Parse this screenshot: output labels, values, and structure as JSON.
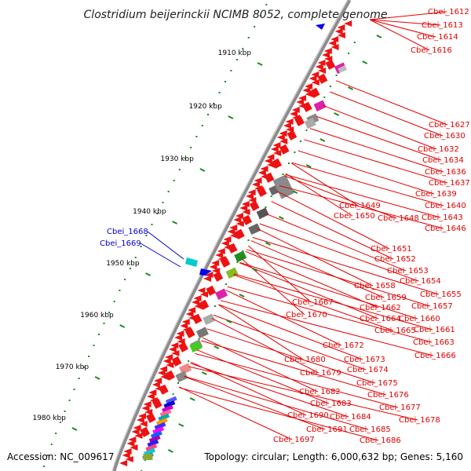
{
  "title": "Clostridium beijerinckii NCIMB 8052, complete genome",
  "accession": "Accession: NC_009617",
  "topology": "Topology: circular; Length: 6,000,632 bp; Genes: 5,160",
  "colors": {
    "gene_label": "#e00000",
    "highlight_label": "#0000cc",
    "backbone": "#8c8c8c",
    "gene_arrow": "#ee1111",
    "tick": "#1a8a1a"
  },
  "kbp_ticks": [
    "1910 kbp",
    "1920 kbp",
    "1930 kbp",
    "1940 kbp",
    "1950 kbp",
    "1960 kbp",
    "1970 kbp",
    "1980 kbp"
  ],
  "highlighted_genes": [
    "Cbei_1668",
    "Cbei_1669"
  ],
  "gene_labels": [
    "Cbei_1612",
    "Cbei_1613",
    "Cbei_1614",
    "Cbei_1616",
    "Cbei_1627",
    "Cbei_1630",
    "Cbei_1632",
    "Cbei_1634",
    "Cbei_1636",
    "Cbei_1637",
    "Cbei_1639",
    "Cbei_1640",
    "Cbei_1643",
    "Cbei_1646",
    "Cbei_1649",
    "Cbei_1648",
    "Cbei_1650",
    "Cbei_1651",
    "Cbei_1652",
    "Cbei_1653",
    "Cbei_1654",
    "Cbei_1658",
    "Cbei_1655",
    "Cbei_1659",
    "Cbei_1657",
    "Cbei_1667",
    "Cbei_1662",
    "Cbei_1660",
    "Cbei_1670",
    "Cbei_1664",
    "Cbei_1661",
    "Cbei_1665",
    "Cbei_1663",
    "Cbei_1672",
    "Cbei_1666",
    "Cbei_1673",
    "Cbei_1680",
    "Cbei_1674",
    "Cbei_1679",
    "Cbei_1675",
    "Cbei_1676",
    "Cbei_1682",
    "Cbei_1677",
    "Cbei_1683",
    "Cbei_1684",
    "Cbei_1678",
    "Cbei_1690",
    "Cbei_1685",
    "Cbei_1691",
    "Cbei_1686",
    "Cbei_1697"
  ]
}
